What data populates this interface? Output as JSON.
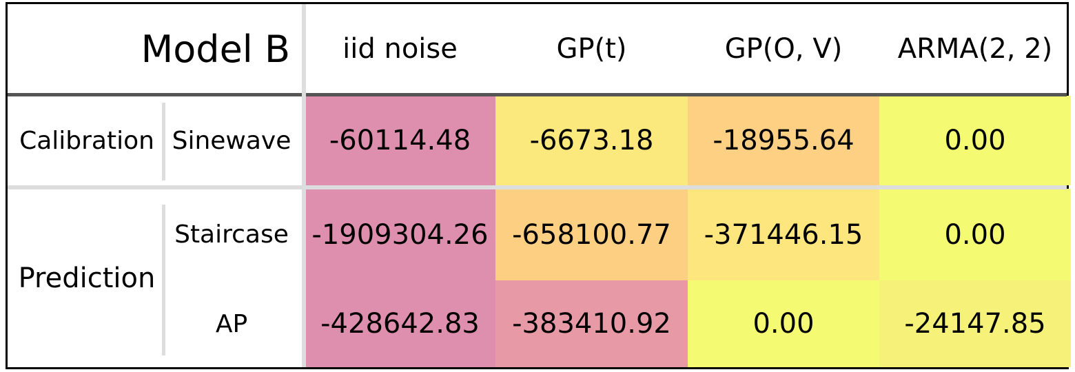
{
  "table": {
    "title": "Model B",
    "columns": [
      "iid noise",
      "GP(t)",
      "GP(O, V)",
      "ARMA(2, 2)"
    ],
    "groups": [
      {
        "label": "Calibration",
        "rows": [
          "Sinewave"
        ]
      },
      {
        "label": "Prediction",
        "rows": [
          "Staircase",
          "AP"
        ]
      }
    ],
    "rows": [
      {
        "group": "Calibration",
        "label": "Sinewave",
        "cells": [
          {
            "text": "-60114.48",
            "color": "#df8fae"
          },
          {
            "text": "-6673.18",
            "color": "#fbe97d"
          },
          {
            "text": "-18955.64",
            "color": "#fdd084"
          },
          {
            "text": "0.00",
            "color": "#f4fa72"
          }
        ]
      },
      {
        "group": "Prediction",
        "label": "Staircase",
        "cells": [
          {
            "text": "-1909304.26",
            "color": "#df8fae"
          },
          {
            "text": "-658100.77",
            "color": "#fdcf83"
          },
          {
            "text": "-371446.15",
            "color": "#fde67d"
          },
          {
            "text": "0.00",
            "color": "#f4fa72"
          }
        ]
      },
      {
        "group": "Prediction",
        "label": "AP",
        "cells": [
          {
            "text": "-428642.83",
            "color": "#df8fae"
          },
          {
            "text": "-383410.92",
            "color": "#e79aa6"
          },
          {
            "text": "0.00",
            "color": "#f4fa72"
          },
          {
            "text": "-24147.85",
            "color": "#f6f178"
          }
        ]
      }
    ],
    "colors": {
      "header_rule": "#555555",
      "separator": "#dddddd",
      "border": "#000000"
    }
  },
  "chart_data": {
    "type": "table",
    "title": "Model B",
    "columns": [
      "iid noise",
      "GP(t)",
      "GP(O, V)",
      "ARMA(2, 2)"
    ],
    "row_groups": [
      "Calibration",
      "Prediction",
      "Prediction"
    ],
    "row_labels": [
      "Sinewave",
      "Staircase",
      "AP"
    ],
    "values": [
      [
        -60114.48,
        -6673.18,
        -18955.64,
        0.0
      ],
      [
        -1909304.26,
        -658100.77,
        -371446.15,
        0.0
      ],
      [
        -428642.83,
        -383410.92,
        0.0,
        -24147.85
      ]
    ],
    "colormap_note": "cells shaded from yellow (0) to pink (most negative) per row"
  }
}
